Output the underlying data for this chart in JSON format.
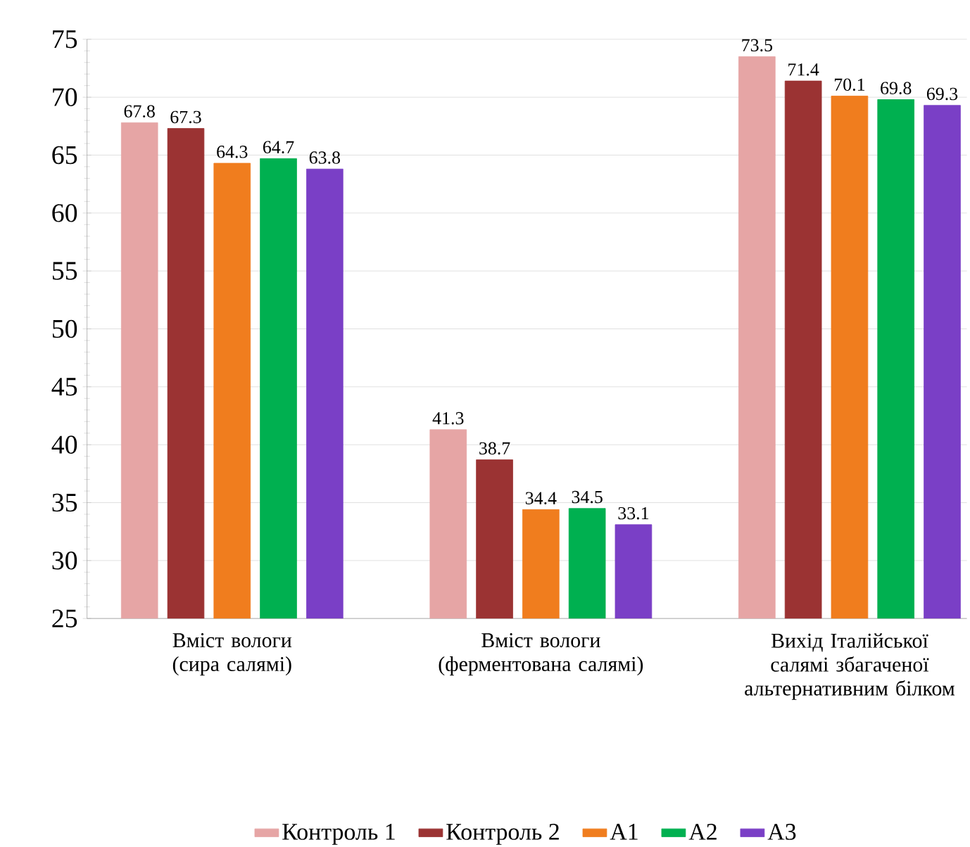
{
  "chart_data": {
    "type": "bar",
    "categories": [
      "Вміст вологи (сира салямі)",
      "Вміст вологи (ферментована салямі)",
      "Вихід Італійської салямі збагаченої альтернативним білком"
    ],
    "series": [
      {
        "name": "Контроль 1",
        "color": "#e6a5a5",
        "values": [
          67.8,
          41.3,
          73.5
        ]
      },
      {
        "name": "Контроль 2",
        "color": "#9b3333",
        "values": [
          67.3,
          38.7,
          71.4
        ]
      },
      {
        "name": "А1",
        "color": "#f07d1e",
        "values": [
          64.3,
          34.4,
          70.1
        ]
      },
      {
        "name": "А2",
        "color": "#00b050",
        "values": [
          64.7,
          34.5,
          69.8
        ]
      },
      {
        "name": "А3",
        "color": "#7a3fc6",
        "values": [
          63.8,
          33.1,
          69.3
        ]
      }
    ],
    "ylim": [
      25,
      75
    ],
    "yticks": [
      25,
      30,
      35,
      40,
      45,
      50,
      55,
      60,
      65,
      70,
      75
    ],
    "grid": "y",
    "legend": "bottom",
    "data_labels": true
  }
}
